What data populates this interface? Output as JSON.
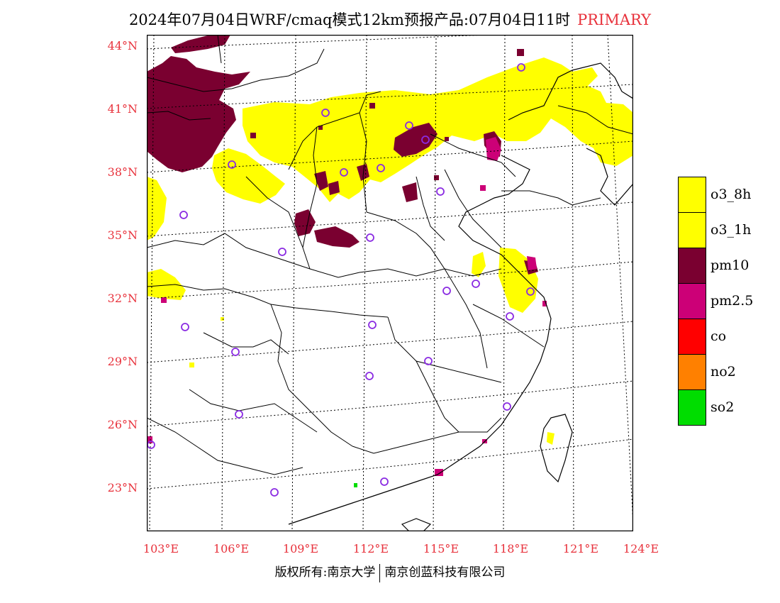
{
  "header": {
    "title": "2024年07月04日WRF/cmaq模式12km预报产品:07月04日11时",
    "tag": "PRIMARY"
  },
  "map": {
    "lat_ticks": [
      "44°N",
      "41°N",
      "38°N",
      "35°N",
      "32°N",
      "29°N",
      "26°N",
      "23°N"
    ],
    "lon_ticks": [
      "103°E",
      "106°E",
      "109°E",
      "112°E",
      "115°E",
      "118°E",
      "121°E",
      "124°E"
    ],
    "colors": {
      "o3_8h": "#ffff00",
      "o3_1h": "#ffff00",
      "pm10": "#7a0030",
      "pm2_5": "#cc0077",
      "co": "#ff0000",
      "no2": "#ff8000",
      "so2": "#00dd00",
      "station_marker": "#8a2be2"
    }
  },
  "legend": {
    "items": [
      {
        "label": "o3_8h",
        "color": "#ffff00"
      },
      {
        "label": "o3_1h",
        "color": "#ffff00"
      },
      {
        "label": "pm10",
        "color": "#7a0030"
      },
      {
        "label": "pm2.5",
        "color": "#cc0077"
      },
      {
        "label": "co",
        "color": "#ff0000"
      },
      {
        "label": "no2",
        "color": "#ff8000"
      },
      {
        "label": "so2",
        "color": "#00dd00"
      }
    ]
  },
  "footer": {
    "left": "版权所有:南京大学",
    "right": "南京创蓝科技有限公司"
  }
}
